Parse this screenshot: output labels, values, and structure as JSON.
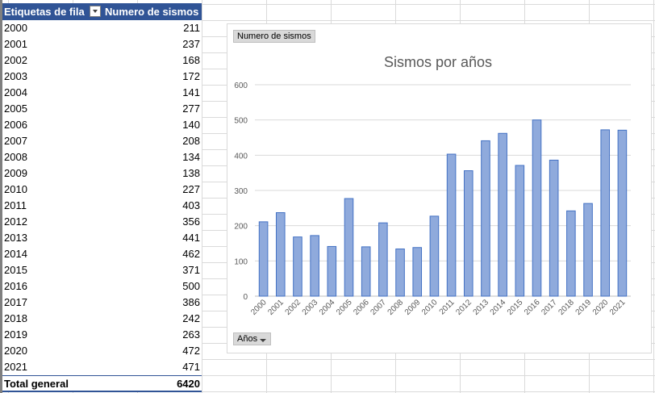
{
  "pivot": {
    "header_col1": "Etiquetas de fila",
    "header_col2": "Numero de sismos",
    "rows": [
      {
        "year": "2000",
        "value": "211"
      },
      {
        "year": "2001",
        "value": "237"
      },
      {
        "year": "2002",
        "value": "168"
      },
      {
        "year": "2003",
        "value": "172"
      },
      {
        "year": "2004",
        "value": "141"
      },
      {
        "year": "2005",
        "value": "277"
      },
      {
        "year": "2006",
        "value": "140"
      },
      {
        "year": "2007",
        "value": "208"
      },
      {
        "year": "2008",
        "value": "134"
      },
      {
        "year": "2009",
        "value": "138"
      },
      {
        "year": "2010",
        "value": "227"
      },
      {
        "year": "2011",
        "value": "403"
      },
      {
        "year": "2012",
        "value": "356"
      },
      {
        "year": "2013",
        "value": "441"
      },
      {
        "year": "2014",
        "value": "462"
      },
      {
        "year": "2015",
        "value": "371"
      },
      {
        "year": "2016",
        "value": "500"
      },
      {
        "year": "2017",
        "value": "386"
      },
      {
        "year": "2018",
        "value": "242"
      },
      {
        "year": "2019",
        "value": "263"
      },
      {
        "year": "2020",
        "value": "472"
      },
      {
        "year": "2021",
        "value": "471"
      }
    ],
    "total_label": "Total general",
    "total_value": "6420",
    "header_color": "#305496"
  },
  "chart_buttons": {
    "values_button": "Numero de sismos",
    "axis_button": "Años"
  },
  "chart_data": {
    "type": "bar",
    "title": "Sismos por años",
    "categories": [
      "2000",
      "2001",
      "2002",
      "2003",
      "2004",
      "2005",
      "2006",
      "2007",
      "2008",
      "2009",
      "2010",
      "2011",
      "2012",
      "2013",
      "2014",
      "2015",
      "2016",
      "2017",
      "2018",
      "2019",
      "2020",
      "2021"
    ],
    "values": [
      211,
      237,
      168,
      172,
      141,
      277,
      140,
      208,
      134,
      138,
      227,
      403,
      356,
      441,
      462,
      371,
      500,
      386,
      242,
      263,
      472,
      471
    ],
    "ylim": [
      0,
      600
    ],
    "yticks": [
      0,
      100,
      200,
      300,
      400,
      500,
      600
    ],
    "grid": true,
    "bar_color": "#8faadc",
    "bar_edge_color": "#4472c4"
  }
}
